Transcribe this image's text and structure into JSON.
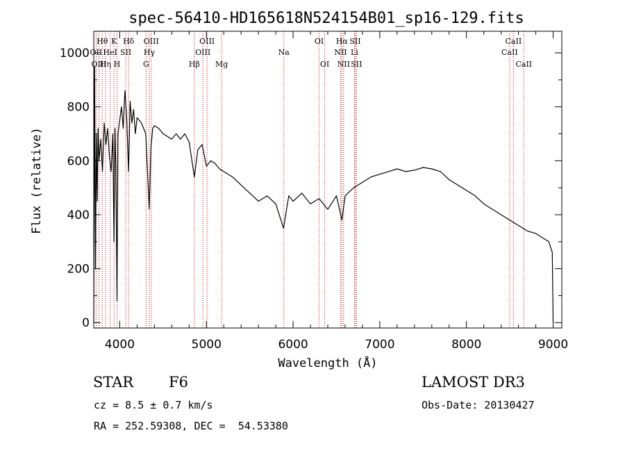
{
  "chart_data": {
    "type": "line",
    "title": "spec-56410-HD165618N524154B01_sp16-129.fits",
    "xlabel": "Wavelength (Å)",
    "ylabel": "Flux (relative)",
    "xlim": [
      3700,
      9100
    ],
    "ylim": [
      -20,
      1080
    ],
    "xticks": [
      4000,
      5000,
      6000,
      7000,
      8000,
      9000
    ],
    "yticks": [
      0,
      200,
      400,
      600,
      800,
      1000
    ],
    "grid": false,
    "line_color": "#000000",
    "marker_color": "#c00000",
    "series": [
      {
        "name": "spectrum",
        "x": [
          3700,
          3710,
          3720,
          3730,
          3740,
          3750,
          3760,
          3780,
          3800,
          3820,
          3840,
          3860,
          3880,
          3900,
          3920,
          3933,
          3945,
          3955,
          3968,
          3980,
          4000,
          4020,
          4040,
          4060,
          4080,
          4101,
          4120,
          4140,
          4160,
          4180,
          4200,
          4250,
          4300,
          4340,
          4360,
          4380,
          4400,
          4450,
          4500,
          4550,
          4600,
          4650,
          4700,
          4750,
          4800,
          4861,
          4900,
          4950,
          5000,
          5050,
          5100,
          5150,
          5200,
          5300,
          5400,
          5500,
          5600,
          5700,
          5800,
          5890,
          5950,
          6000,
          6100,
          6200,
          6300,
          6400,
          6500,
          6563,
          6600,
          6700,
          6800,
          6900,
          7000,
          7100,
          7200,
          7300,
          7400,
          7500,
          7600,
          7700,
          7800,
          7900,
          8000,
          8100,
          8200,
          8300,
          8400,
          8500,
          8600,
          8700,
          8800,
          8900,
          8950,
          8990,
          9000
        ],
        "y": [
          0,
          950,
          200,
          700,
          450,
          720,
          600,
          680,
          560,
          740,
          660,
          720,
          620,
          560,
          700,
          300,
          720,
          580,
          80,
          700,
          750,
          800,
          720,
          860,
          760,
          560,
          820,
          740,
          790,
          700,
          760,
          740,
          700,
          420,
          650,
          720,
          730,
          720,
          700,
          690,
          680,
          700,
          680,
          700,
          670,
          540,
          640,
          660,
          580,
          600,
          590,
          570,
          560,
          540,
          510,
          480,
          450,
          470,
          440,
          350,
          470,
          450,
          480,
          440,
          460,
          420,
          470,
          380,
          470,
          500,
          520,
          540,
          550,
          560,
          570,
          560,
          565,
          575,
          570,
          560,
          530,
          510,
          490,
          470,
          440,
          420,
          400,
          380,
          360,
          340,
          330,
          310,
          300,
          260,
          0
        ]
      }
    ],
    "line_markers": [
      {
        "label": "Hθ",
        "x": 3798,
        "row": 1
      },
      {
        "label": "OII",
        "x": 3727,
        "row": 2
      },
      {
        "label": "OIII",
        "x": 3760,
        "row": 3
      },
      {
        "label": "Hη",
        "x": 3835,
        "row": 3
      },
      {
        "label": "K",
        "x": 3934,
        "row": 1
      },
      {
        "label": "HeI",
        "x": 3889,
        "row": 2
      },
      {
        "label": "SII",
        "x": 4069,
        "row": 2
      },
      {
        "label": "H",
        "x": 3969,
        "row": 3
      },
      {
        "label": "Hδ",
        "x": 4102,
        "row": 1
      },
      {
        "label": "OIII",
        "x": 4363,
        "row": 1
      },
      {
        "label": "Hγ",
        "x": 4341,
        "row": 2
      },
      {
        "label": "G",
        "x": 4304,
        "row": 3
      },
      {
        "label": "Hβ",
        "x": 4861,
        "row": 3
      },
      {
        "label": "OIII",
        "x": 5007,
        "row": 1
      },
      {
        "label": "OIII",
        "x": 4959,
        "row": 2
      },
      {
        "label": "Mg",
        "x": 5175,
        "row": 3
      },
      {
        "label": "Na",
        "x": 5893,
        "row": 2
      },
      {
        "label": "OI",
        "x": 6300,
        "row": 1
      },
      {
        "label": "OI",
        "x": 6364,
        "row": 3
      },
      {
        "label": "Hα",
        "x": 6563,
        "row": 1
      },
      {
        "label": "SII",
        "x": 6716,
        "row": 1
      },
      {
        "label": "NII",
        "x": 6548,
        "row": 2
      },
      {
        "label": "Li",
        "x": 6708,
        "row": 2
      },
      {
        "label": "NII",
        "x": 6583,
        "row": 3
      },
      {
        "label": "SII",
        "x": 6731,
        "row": 3
      },
      {
        "label": "CaII",
        "x": 8542,
        "row": 1
      },
      {
        "label": "CaII",
        "x": 8498,
        "row": 2
      },
      {
        "label": "CaII",
        "x": 8662,
        "row": 3
      }
    ]
  },
  "info": {
    "object_class": "STAR",
    "subclass": "F6",
    "survey": "LAMOST DR3",
    "redshift": "cz = 8.5 ± 0.7 km/s",
    "obs_date": "Obs-Date: 20130427",
    "coords": "RA = 252.59308, DEC =  54.53380"
  }
}
